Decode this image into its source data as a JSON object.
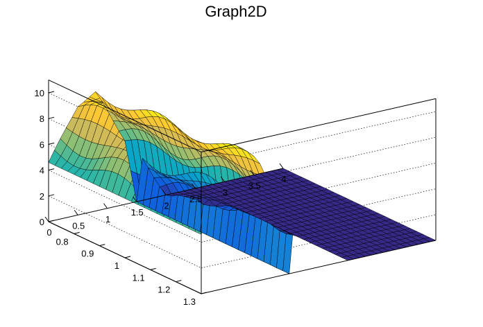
{
  "chart_data": {
    "type": "surface",
    "title": "Graph2D",
    "x": {
      "range": [
        0,
        4
      ],
      "ticks": [
        0,
        0.5,
        1,
        1.5,
        2,
        2.5,
        3,
        3.5,
        4
      ],
      "tick_labels": [
        "0",
        "0.5",
        "1",
        "1.5",
        "2",
        "2.5",
        "3",
        "3.5",
        "4"
      ]
    },
    "y": {
      "range": [
        0.7,
        1.3
      ],
      "ticks": [
        0.8,
        0.9,
        1,
        1.1,
        1.2,
        1.3
      ],
      "tick_labels": [
        "0.8",
        "0.9",
        "1",
        "1.1",
        "1.2",
        "1.3"
      ]
    },
    "z": {
      "range": [
        0,
        11
      ],
      "ticks": [
        0,
        2,
        4,
        6,
        8,
        10
      ],
      "tick_labels": [
        "0",
        "2",
        "4",
        "6",
        "8",
        "10"
      ]
    },
    "grid": true,
    "colormap": "viridis-like (dark blue → teal → green → yellow)",
    "colors": [
      "#352a87",
      "#0f5cdd",
      "#1481d6",
      "#06a4ca",
      "#2eb7a4",
      "#87bf77",
      "#d1bb59",
      "#fec832",
      "#f9fb0e"
    ],
    "surface_profile": [
      {
        "x": 0.0,
        "z_back": 4.6,
        "z_front": 4.6
      },
      {
        "x": 0.5,
        "z_back": 9.5,
        "z_front": 8.5
      },
      {
        "x": 0.8,
        "z_back": 9.8,
        "z_front": 9.2
      },
      {
        "x": 1.0,
        "z_back": 8.9,
        "z_front": 7.6
      },
      {
        "x": 1.3,
        "z_back": 6.7,
        "z_front": 5.0
      },
      {
        "x": 1.5,
        "z_back": 0.0,
        "z_front": 0.0
      },
      {
        "x": 1.6,
        "z_back": 4.6,
        "z_front": 3.2
      },
      {
        "x": 2.0,
        "z_back": 3.8,
        "z_front": 0.0
      },
      {
        "x": 2.5,
        "z_back": 0.0,
        "z_front": 0.0
      },
      {
        "x": 4.0,
        "z_back": 0.0,
        "z_front": 0.0
      }
    ]
  }
}
